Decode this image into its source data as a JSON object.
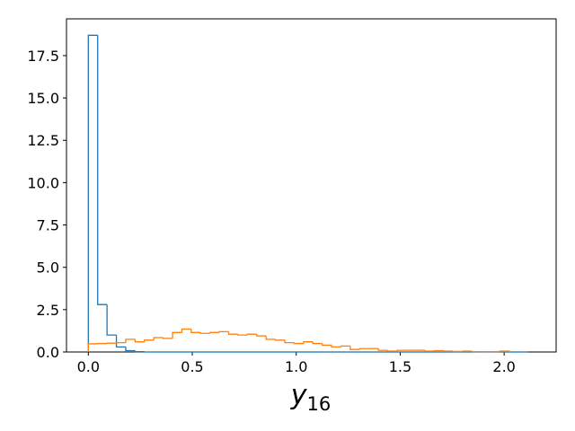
{
  "chart_data": {
    "type": "histogram",
    "xlabel": [
      "y",
      "16"
    ],
    "xlim": [
      -0.105,
      2.25
    ],
    "ylim": [
      0,
      19.67
    ],
    "xticks": [
      {
        "value": 0,
        "label": "0.0"
      },
      {
        "value": 0.5,
        "label": "0.5"
      },
      {
        "value": 1,
        "label": "1.0"
      },
      {
        "value": 1.5,
        "label": "1.5"
      },
      {
        "value": 2,
        "label": "2.0"
      }
    ],
    "yticks": [
      {
        "value": 0,
        "label": "0.0"
      },
      {
        "value": 2.5,
        "label": "2.5"
      },
      {
        "value": 5,
        "label": "5.0"
      },
      {
        "value": 7.5,
        "label": "7.5"
      },
      {
        "value": 10,
        "label": "10.0"
      },
      {
        "value": 12.5,
        "label": "12.5"
      },
      {
        "value": 15,
        "label": "15.0"
      },
      {
        "value": 17.5,
        "label": "17.5"
      }
    ],
    "grid": false,
    "series": [
      {
        "color": "#1f77b4",
        "bins": [
          0,
          0.045,
          0.09,
          0.135,
          0.18,
          0.225,
          0.27,
          0.315,
          0.36,
          0.405,
          0.45,
          0.495,
          0.54,
          0.585,
          0.63,
          0.675,
          0.72,
          0.765,
          0.81,
          0.855,
          0.9,
          0.945,
          0.99,
          1.035,
          1.08,
          1.125,
          1.17,
          1.215,
          1.26,
          1.305,
          1.35,
          1.395,
          1.44,
          1.485,
          1.53,
          1.575,
          1.62,
          1.665,
          1.71,
          1.755,
          1.8,
          1.845,
          1.89,
          1.935,
          1.98,
          2.025,
          2.07,
          2.115
        ],
        "values": [
          18.7,
          2.8,
          1.0,
          0.3,
          0.08,
          0.02,
          0,
          0,
          0,
          0,
          0,
          0,
          0,
          0,
          0,
          0,
          0,
          0,
          0,
          0,
          0,
          0,
          0,
          0,
          0,
          0,
          0,
          0,
          0,
          0,
          0,
          0,
          0,
          0,
          0,
          0,
          0,
          0,
          0,
          0,
          0,
          0,
          0,
          0,
          0,
          0,
          0
        ]
      },
      {
        "color": "#ff7f0e",
        "bins": [
          0,
          0.045,
          0.09,
          0.135,
          0.18,
          0.225,
          0.27,
          0.315,
          0.36,
          0.405,
          0.45,
          0.495,
          0.54,
          0.585,
          0.63,
          0.675,
          0.72,
          0.765,
          0.81,
          0.855,
          0.9,
          0.945,
          0.99,
          1.035,
          1.08,
          1.125,
          1.17,
          1.215,
          1.26,
          1.305,
          1.35,
          1.395,
          1.44,
          1.485,
          1.53,
          1.575,
          1.62,
          1.665,
          1.71,
          1.755,
          1.8,
          1.845,
          1.89,
          1.935,
          1.98,
          2.025
        ],
        "values": [
          0.48,
          0.5,
          0.52,
          0.55,
          0.75,
          0.6,
          0.7,
          0.85,
          0.8,
          1.15,
          1.35,
          1.15,
          1.1,
          1.15,
          1.2,
          1.05,
          1.0,
          1.05,
          0.95,
          0.75,
          0.7,
          0.55,
          0.5,
          0.6,
          0.5,
          0.4,
          0.3,
          0.35,
          0.15,
          0.2,
          0.2,
          0.1,
          0.05,
          0.1,
          0.1,
          0.1,
          0.05,
          0.08,
          0.05,
          0.03,
          0.05,
          0.02,
          0.02,
          0.02,
          0.05
        ]
      }
    ]
  }
}
